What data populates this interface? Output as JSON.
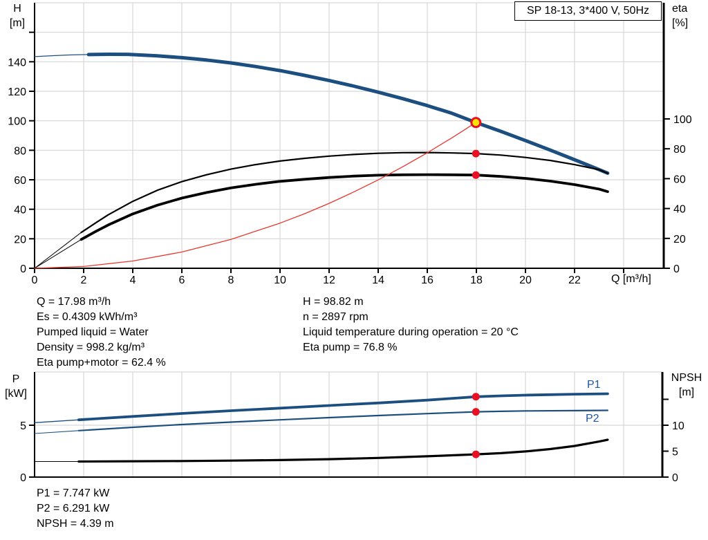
{
  "title_box": {
    "label": "SP 18-13, 3*400 V, 50Hz"
  },
  "colors": {
    "blue": "#1c4f80",
    "black": "#000000",
    "red": "#e8372c",
    "dot_red": "#e81123",
    "duty_yellow": "#ffe400",
    "grid": "#d7d7d7",
    "axis": "#000000",
    "curve_label_blue": "#1d55a0"
  },
  "info_blocks": {
    "left": {
      "lines": [
        "Q = 17.98 m³/h",
        "Es = 0.4309 kWh/m³",
        "Pumped liquid = Water",
        "Density = 998.2 kg/m³",
        "Eta pump+motor = 62.4 %"
      ]
    },
    "right": {
      "lines": [
        "H = 98.82 m",
        "n = 2897 rpm",
        "Liquid temperature during operation = 20 °C",
        "Eta pump = 76.8 %"
      ]
    },
    "bottom": {
      "lines": [
        "P1 = 7.747 kW",
        "P2 = 6.291 kW",
        "NPSH = 4.39 m"
      ]
    }
  },
  "chart_data": [
    {
      "type": "line",
      "name": "performance-curves",
      "x_axis": {
        "label": "Q [m³/h]",
        "range": [
          0,
          25.6
        ],
        "ticks": [
          0,
          2,
          4,
          6,
          8,
          10,
          12,
          14,
          16,
          18,
          20,
          22
        ],
        "unlabeled_ticks": [
          24
        ],
        "grid": [
          2,
          4,
          6,
          8,
          10,
          12,
          14,
          16,
          18,
          20,
          22,
          24
        ]
      },
      "left_axis": {
        "label_line1": "H",
        "label_line2": "[m]",
        "range": [
          0,
          180
        ],
        "ticks": [
          0,
          20,
          40,
          60,
          80,
          100,
          120,
          140
        ],
        "unlabeled_ticks": [
          160
        ],
        "grid": [
          20,
          40,
          60,
          80,
          100,
          120,
          140,
          160
        ]
      },
      "right_axis": {
        "label_line1": "eta",
        "label_line2": "[%]",
        "range": [
          0,
          177.8
        ],
        "ticks": [
          0,
          20,
          40,
          60,
          80,
          100
        ],
        "unlabeled_ticks": []
      },
      "series": [
        {
          "name": "head",
          "axis": "left",
          "color": "blue",
          "segments": [
            {
              "width": 1.3,
              "points": [
                [
                  0,
                  143.5
                ],
                [
                  0.7,
                  144.1
                ],
                [
                  1.4,
                  144.6
                ],
                [
                  2.2,
                  144.9
                ]
              ]
            },
            {
              "width": 5,
              "points": [
                [
                  2.2,
                  144.9
                ],
                [
                  3,
                  145.1
                ],
                [
                  3.8,
                  145.05
                ],
                [
                  5,
                  144.0
                ],
                [
                  6,
                  142.8
                ],
                [
                  7,
                  141.2
                ],
                [
                  8,
                  139.2
                ],
                [
                  9,
                  136.8
                ],
                [
                  10,
                  134.0
                ],
                [
                  11,
                  130.8
                ],
                [
                  12,
                  127.3
                ],
                [
                  13,
                  123.5
                ],
                [
                  14,
                  119.4
                ],
                [
                  15,
                  115.0
                ],
                [
                  16,
                  110.3
                ],
                [
                  17,
                  105.1
                ],
                [
                  17.98,
                  98.82
                ],
                [
                  19,
                  92.8
                ],
                [
                  20,
                  86.6
                ],
                [
                  21,
                  80.2
                ],
                [
                  22,
                  73.6
                ],
                [
                  23,
                  66.9
                ],
                [
                  23.35,
                  64.5
                ]
              ]
            }
          ]
        },
        {
          "name": "eta-pump",
          "axis": "right",
          "color": "black",
          "segments": [
            {
              "width": 1,
              "points": [
                [
                  0,
                  0
                ],
                [
                  1.9,
                  24
                ]
              ]
            },
            {
              "width": 2.2,
              "points": [
                [
                  1.9,
                  24
                ],
                [
                  2.5,
                  30.5
                ],
                [
                  3,
                  35.8
                ],
                [
                  4,
                  44.8
                ],
                [
                  5,
                  52.2
                ],
                [
                  6,
                  58.0
                ],
                [
                  7,
                  62.6
                ],
                [
                  8,
                  66.4
                ],
                [
                  9,
                  69.4
                ],
                [
                  10,
                  71.8
                ],
                [
                  11,
                  73.6
                ],
                [
                  12,
                  75.1
                ],
                [
                  13,
                  76.2
                ],
                [
                  14,
                  77.0
                ],
                [
                  15,
                  77.4
                ],
                [
                  16,
                  77.5
                ],
                [
                  17,
                  77.2
                ],
                [
                  18,
                  76.8
                ],
                [
                  19,
                  75.8
                ],
                [
                  20,
                  74.2
                ],
                [
                  21,
                  72.2
                ],
                [
                  22,
                  69.4
                ],
                [
                  23,
                  66.0
                ],
                [
                  23.35,
                  63.6
                ]
              ]
            }
          ]
        },
        {
          "name": "eta-pump-motor",
          "axis": "right",
          "color": "black",
          "segments": [
            {
              "width": 1,
              "points": [
                [
                  0,
                  0
                ],
                [
                  1.9,
                  19.3
                ]
              ]
            },
            {
              "width": 3.8,
              "points": [
                [
                  1.9,
                  19.3
                ],
                [
                  2.5,
                  24.7
                ],
                [
                  3,
                  29.0
                ],
                [
                  4,
                  36.4
                ],
                [
                  5,
                  42.2
                ],
                [
                  6,
                  47.0
                ],
                [
                  7,
                  50.7
                ],
                [
                  8,
                  53.8
                ],
                [
                  9,
                  56.2
                ],
                [
                  10,
                  58.2
                ],
                [
                  11,
                  59.6
                ],
                [
                  12,
                  60.8
                ],
                [
                  13,
                  61.7
                ],
                [
                  14,
                  62.3
                ],
                [
                  15,
                  62.6
                ],
                [
                  16,
                  62.7
                ],
                [
                  17,
                  62.6
                ],
                [
                  18,
                  62.4
                ],
                [
                  19,
                  61.5
                ],
                [
                  20,
                  60.2
                ],
                [
                  21,
                  58.4
                ],
                [
                  22,
                  56.0
                ],
                [
                  23,
                  53.0
                ],
                [
                  23.35,
                  51.3
                ]
              ]
            }
          ]
        },
        {
          "name": "system-curve",
          "axis": "left",
          "color": "red",
          "segments": [
            {
              "width": 1.3,
              "points": [
                [
                  0,
                  0
                ],
                [
                  2,
                  1.2
                ],
                [
                  4,
                  4.9
                ],
                [
                  6,
                  11.0
                ],
                [
                  8,
                  19.6
                ],
                [
                  10,
                  30.6
                ],
                [
                  11,
                  37.0
                ],
                [
                  12,
                  44.0
                ],
                [
                  13,
                  51.7
                ],
                [
                  14,
                  59.9
                ],
                [
                  15,
                  68.8
                ],
                [
                  16,
                  78.3
                ],
                [
                  17,
                  88.4
                ],
                [
                  17.98,
                  98.82
                ]
              ]
            }
          ]
        }
      ],
      "markers": [
        {
          "name": "duty-point",
          "style": "duty",
          "axis": "left",
          "q": 17.98,
          "v": 98.82
        },
        {
          "name": "eta-pump-duty-dot",
          "style": "dot",
          "axis": "right",
          "q": 17.98,
          "v": 76.8
        },
        {
          "name": "eta-pump-motor-duty-dot",
          "style": "dot",
          "axis": "right",
          "q": 17.98,
          "v": 62.4
        }
      ]
    },
    {
      "type": "line",
      "name": "power-npsh-curves",
      "x_axis": {
        "label": "",
        "range": [
          0,
          25.6
        ],
        "ticks": [],
        "unlabeled_ticks": [],
        "grid": [
          2,
          4,
          6,
          8,
          10,
          12,
          14,
          16,
          18,
          20,
          22,
          24
        ]
      },
      "left_axis": {
        "label_line1": "P",
        "label_line2": "[kW]",
        "range": [
          0,
          10.1
        ],
        "ticks": [
          0,
          5
        ],
        "unlabeled_ticks": [],
        "grid": [
          5
        ]
      },
      "right_axis": {
        "label_line1": "NPSH",
        "label_line2": "[m]",
        "range": [
          0,
          20.3
        ],
        "ticks": [
          0,
          5,
          10
        ],
        "unlabeled_ticks": [
          15
        ]
      },
      "curve_labels": {
        "p1": "P1",
        "p2": "P2"
      },
      "series": [
        {
          "name": "p1-power",
          "axis": "left",
          "color": "blue",
          "segments": [
            {
              "width": 1.3,
              "points": [
                [
                  0,
                  5.25
                ],
                [
                  1.8,
                  5.52
                ]
              ]
            },
            {
              "width": 3.8,
              "points": [
                [
                  1.8,
                  5.52
                ],
                [
                  4,
                  5.85
                ],
                [
                  6,
                  6.13
                ],
                [
                  8,
                  6.4
                ],
                [
                  10,
                  6.65
                ],
                [
                  12,
                  6.9
                ],
                [
                  14,
                  7.15
                ],
                [
                  16,
                  7.42
                ],
                [
                  17.98,
                  7.747
                ],
                [
                  19,
                  7.83
                ],
                [
                  20,
                  7.9
                ],
                [
                  21,
                  7.95
                ],
                [
                  22,
                  7.99
                ],
                [
                  23.35,
                  8.03
                ]
              ]
            }
          ]
        },
        {
          "name": "p2-power",
          "axis": "left",
          "color": "blue",
          "segments": [
            {
              "width": 1.1,
              "points": [
                [
                  0,
                  4.2
                ],
                [
                  1.8,
                  4.48
                ]
              ]
            },
            {
              "width": 2.2,
              "points": [
                [
                  1.8,
                  4.48
                ],
                [
                  4,
                  4.8
                ],
                [
                  6,
                  5.07
                ],
                [
                  8,
                  5.3
                ],
                [
                  10,
                  5.52
                ],
                [
                  12,
                  5.73
                ],
                [
                  14,
                  5.93
                ],
                [
                  16,
                  6.12
                ],
                [
                  17.98,
                  6.291
                ],
                [
                  19,
                  6.34
                ],
                [
                  20,
                  6.38
                ],
                [
                  22,
                  6.41
                ],
                [
                  23.35,
                  6.43
                ]
              ]
            }
          ]
        },
        {
          "name": "npsh",
          "axis": "right",
          "color": "black",
          "segments": [
            {
              "width": 1,
              "points": [
                [
                  0,
                  3.0
                ],
                [
                  1.8,
                  3.0
                ]
              ]
            },
            {
              "width": 3.2,
              "points": [
                [
                  1.8,
                  3.0
                ],
                [
                  4,
                  3.05
                ],
                [
                  6,
                  3.1
                ],
                [
                  8,
                  3.17
                ],
                [
                  10,
                  3.28
                ],
                [
                  12,
                  3.45
                ],
                [
                  14,
                  3.7
                ],
                [
                  16,
                  4.02
                ],
                [
                  17.98,
                  4.39
                ],
                [
                  19,
                  4.62
                ],
                [
                  20,
                  4.95
                ],
                [
                  21,
                  5.4
                ],
                [
                  22,
                  6.0
                ],
                [
                  23,
                  6.85
                ],
                [
                  23.35,
                  7.2
                ]
              ]
            }
          ]
        }
      ],
      "markers": [
        {
          "name": "p1-duty-dot",
          "style": "dot",
          "axis": "left",
          "q": 17.98,
          "v": 7.747
        },
        {
          "name": "p2-duty-dot",
          "style": "dot",
          "axis": "left",
          "q": 17.98,
          "v": 6.291
        },
        {
          "name": "npsh-duty-dot",
          "style": "dot",
          "axis": "right",
          "q": 17.98,
          "v": 4.39
        }
      ]
    }
  ]
}
